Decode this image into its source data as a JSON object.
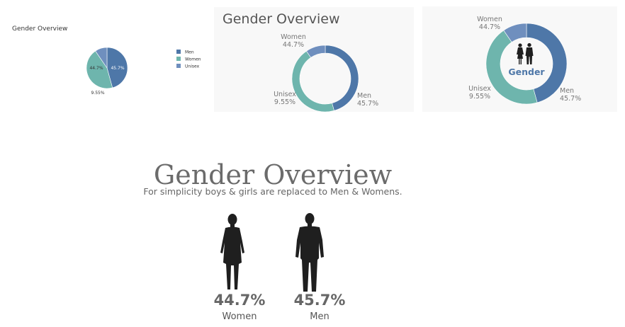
{
  "chart_data": [
    {
      "type": "pie",
      "title": "Gender Overview",
      "categories": [
        "Men",
        "Women",
        "Unisex"
      ],
      "values": [
        45.7,
        44.7,
        9.55
      ],
      "labels": [
        "45.7%",
        "44.7%",
        "9.55%"
      ],
      "legend": "right",
      "colors": [
        "#4e77a8",
        "#6eb5ad",
        "#6f8fbe"
      ]
    },
    {
      "type": "pie",
      "variant": "donut",
      "title": "Gender Overview",
      "categories": [
        "Men",
        "Women",
        "Unisex"
      ],
      "values": [
        45.7,
        44.7,
        9.55
      ],
      "labels": [
        "45.7%",
        "44.7%",
        "9.55%"
      ],
      "colors": [
        "#4e77a8",
        "#6eb5ad",
        "#6f8fbe"
      ]
    },
    {
      "type": "pie",
      "variant": "donut",
      "center_label": "Gender",
      "categories": [
        "Men",
        "Women",
        "Unisex"
      ],
      "values": [
        45.7,
        44.7,
        9.55
      ],
      "labels": [
        "45.7%",
        "44.7%",
        "9.55%"
      ],
      "colors": [
        "#4e77a8",
        "#6eb5ad",
        "#6f8fbe"
      ]
    }
  ],
  "infographic": {
    "title": "Gender Overview",
    "subtitle": "For simplicity boys & girls are replaced to Men & Womens.",
    "women": {
      "pct": "44.7%",
      "label": "Women"
    },
    "men": {
      "pct": "45.7%",
      "label": "Men"
    }
  },
  "colors": {
    "men": "#4e77a8",
    "women": "#6eb5ad",
    "unisex": "#6f8fbe",
    "silhouette": "#1f1f1f"
  }
}
